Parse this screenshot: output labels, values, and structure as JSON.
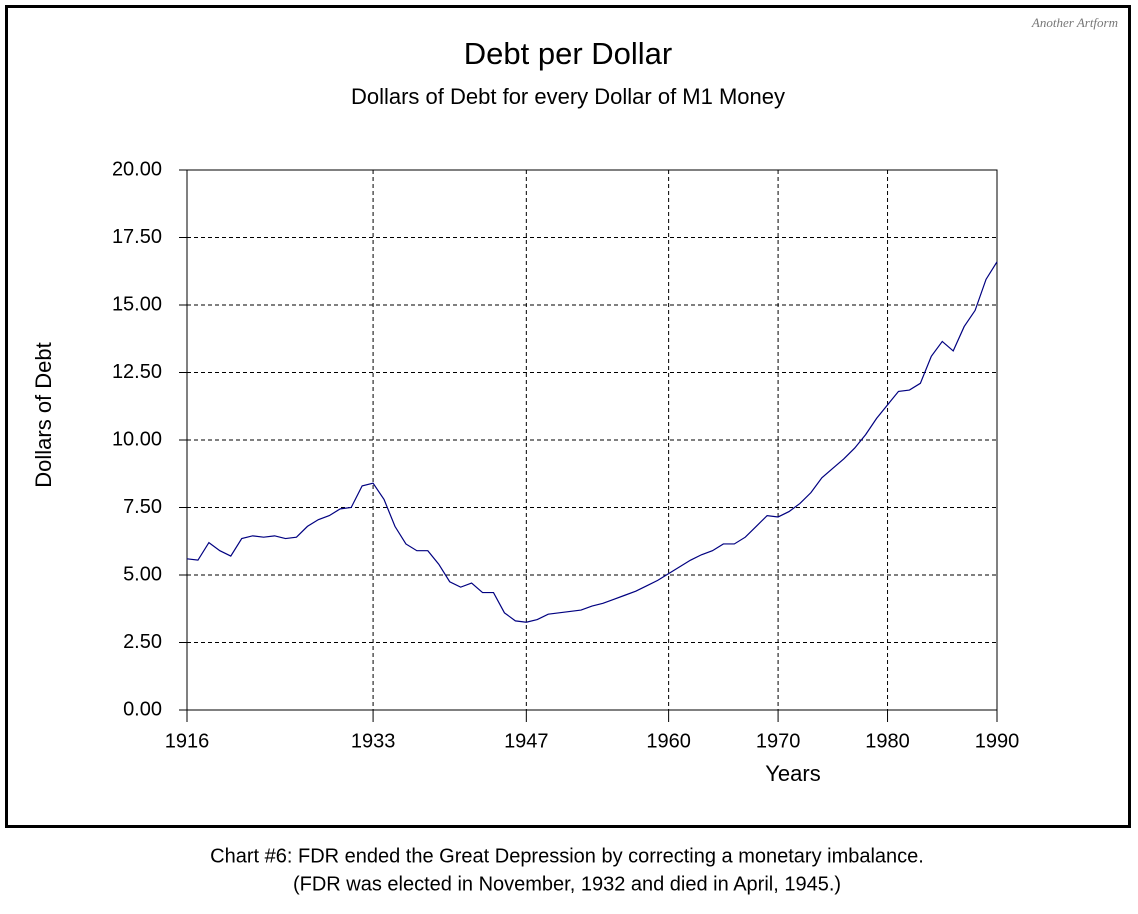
{
  "chart_data": {
    "type": "line",
    "title": "Debt per Dollar",
    "subtitle": "Dollars of Debt for every Dollar of M1 Money",
    "xlabel": "Years",
    "ylabel": "Dollars of Debt",
    "x": [
      1916,
      1917,
      1918,
      1919,
      1920,
      1921,
      1922,
      1923,
      1924,
      1925,
      1926,
      1927,
      1928,
      1929,
      1930,
      1931,
      1932,
      1933,
      1934,
      1935,
      1936,
      1937,
      1938,
      1939,
      1940,
      1941,
      1942,
      1943,
      1944,
      1945,
      1946,
      1947,
      1948,
      1949,
      1950,
      1951,
      1952,
      1953,
      1954,
      1955,
      1956,
      1957,
      1958,
      1959,
      1960,
      1961,
      1962,
      1963,
      1964,
      1965,
      1966,
      1967,
      1968,
      1969,
      1970,
      1971,
      1972,
      1973,
      1974,
      1975,
      1976,
      1977,
      1978,
      1979,
      1980,
      1981,
      1982,
      1983,
      1984,
      1985,
      1986,
      1987,
      1988,
      1989,
      1990
    ],
    "values": [
      5.6,
      5.55,
      6.2,
      5.9,
      5.7,
      6.35,
      6.45,
      6.4,
      6.45,
      6.35,
      6.4,
      6.8,
      7.05,
      7.2,
      7.45,
      7.5,
      8.3,
      8.4,
      7.8,
      6.8,
      6.15,
      5.9,
      5.9,
      5.4,
      4.75,
      4.55,
      4.7,
      4.35,
      4.35,
      3.6,
      3.3,
      3.25,
      3.35,
      3.55,
      3.6,
      3.65,
      3.7,
      3.85,
      3.95,
      4.1,
      4.25,
      4.4,
      4.6,
      4.8,
      5.05,
      5.3,
      5.55,
      5.75,
      5.9,
      6.15,
      6.15,
      6.4,
      6.8,
      7.2,
      7.15,
      7.35,
      7.65,
      8.05,
      8.6,
      8.95,
      9.3,
      9.7,
      10.2,
      10.8,
      11.3,
      11.8,
      11.85,
      12.1,
      13.1,
      13.65,
      13.3,
      14.2,
      14.8,
      15.95,
      16.6
    ],
    "color": "#000080",
    "xlim": [
      1916,
      1990
    ],
    "xticks": [
      1916,
      1933,
      1947,
      1960,
      1970,
      1980,
      1990
    ],
    "ylim": [
      0,
      20
    ],
    "yticks": [
      {
        "value": 0,
        "label": "0.00"
      },
      {
        "value": 2.5,
        "label": "2.50"
      },
      {
        "value": 5,
        "label": "5.00"
      },
      {
        "value": 7.5,
        "label": "7.50"
      },
      {
        "value": 10,
        "label": "10.00"
      },
      {
        "value": 12.5,
        "label": "12.50"
      },
      {
        "value": 15,
        "label": "15.00"
      },
      {
        "value": 17.5,
        "label": "17.50"
      },
      {
        "value": 20,
        "label": "20.00"
      }
    ],
    "grid": true
  },
  "watermark": "Another Artform",
  "caption": [
    "Chart #6: FDR ended the Great Depression by correcting a monetary imbalance.",
    "(FDR was elected in November, 1932 and died in April, 1945.)"
  ]
}
